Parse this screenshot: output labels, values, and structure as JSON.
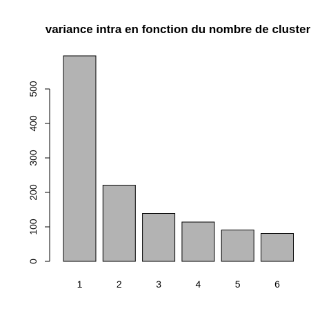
{
  "chart_data": {
    "type": "bar",
    "title": "variance intra en fonction du nombre de cluster",
    "xlabel": "",
    "ylabel": "",
    "categories": [
      "1",
      "2",
      "3",
      "4",
      "5",
      "6"
    ],
    "values": [
      596,
      221,
      139,
      114,
      91,
      81
    ],
    "ylim": [
      0,
      600
    ],
    "yticks": [
      0,
      100,
      200,
      300,
      400,
      500
    ],
    "ytick_labels": [
      "0",
      "100",
      "200",
      "300",
      "400",
      "500"
    ],
    "grid": false,
    "legend": "none",
    "bar_color": "#b3b3b3",
    "border_color": "#000000"
  }
}
